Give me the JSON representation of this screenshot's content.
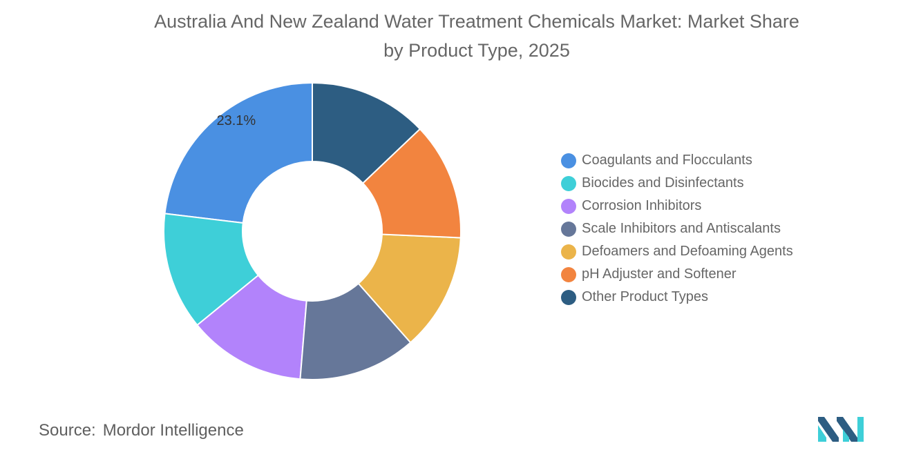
{
  "chart_data": {
    "type": "pie",
    "variant": "donut",
    "title": "Australia And New Zealand Water Treatment Chemicals Market: Market Share by Product Type, 2025",
    "title_lines": [
      "Australia And New Zealand Water Treatment Chemicals Market: Market Share",
      "by Product Type, 2025"
    ],
    "categories": [
      "Coagulants and Flocculants",
      "Biocides and Disinfectants",
      "Corrosion Inhibitors",
      "Scale Inhibitors and Antiscalants",
      "Defoamers and Defoaming Agents",
      "pH Adjuster and Softener",
      "Other Product Types"
    ],
    "values": [
      23.1,
      12.8,
      12.8,
      12.8,
      12.8,
      12.8,
      12.9
    ],
    "colors": [
      "#4a90e2",
      "#3ecfd8",
      "#b283fb",
      "#667799",
      "#ebb44a",
      "#f2843f",
      "#2d5d82"
    ],
    "data_labels": [
      {
        "category": "Coagulants and Flocculants",
        "text": "23.1%"
      }
    ],
    "legend_position": "right"
  },
  "source": {
    "label": "Source:",
    "value": "Mordor Intelligence"
  },
  "logo": {
    "icon": "mordor-intelligence-logo",
    "colors": [
      "#2d5d82",
      "#3ecfd8"
    ]
  }
}
